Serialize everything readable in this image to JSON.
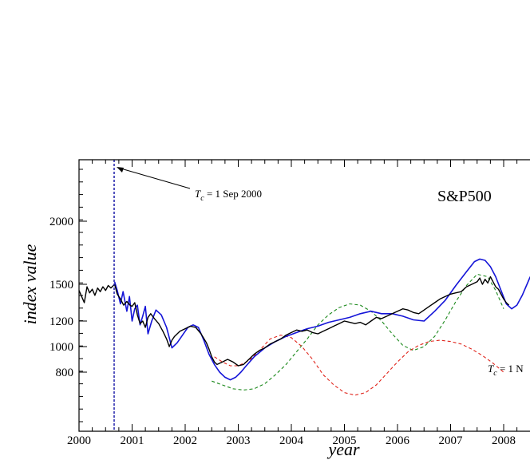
{
  "chart_data": {
    "type": "line",
    "title": "S&P500",
    "xlabel": "year",
    "ylabel": "index value",
    "xlim": [
      2000.0,
      2008.5
    ],
    "ylim": [
      500,
      2400
    ],
    "x_ticks": [
      2000,
      2001,
      2002,
      2003,
      2004,
      2005,
      2006,
      2007,
      2008
    ],
    "y_ticks": [
      800,
      1000,
      1200,
      1500,
      2000
    ],
    "grid": false,
    "annotations": [
      {
        "text_var": "T",
        "text_sub": "c",
        "text_rest": " = 1 Sep 2000",
        "at": [
          2000.67,
          2350
        ]
      },
      {
        "text_var": "T",
        "text_sub": "c",
        "text_rest": " = 1 N",
        "at": [
          2008.2,
          800
        ]
      }
    ],
    "series": [
      {
        "style": "black-solid",
        "x": [
          2000.0,
          2000.05,
          2000.1,
          2000.15,
          2000.2,
          2000.25,
          2000.3,
          2000.35,
          2000.4,
          2000.45,
          2000.5,
          2000.55,
          2000.6,
          2000.67,
          2000.72,
          2000.78,
          2000.84,
          2000.9,
          2000.96,
          2001.0,
          2001.05,
          2001.1,
          2001.15,
          2001.2,
          2001.25,
          2001.3,
          2001.35,
          2001.42,
          2001.5,
          2001.58,
          2001.65,
          2001.7,
          2001.75,
          2001.8,
          2001.9,
          2002.0,
          2002.1,
          2002.2,
          2002.3,
          2002.4,
          2002.45,
          2002.5,
          2002.55,
          2002.6,
          2002.7,
          2002.8,
          2002.9,
          2003.0,
          2003.1,
          2003.2,
          2003.3,
          2003.4,
          2003.5,
          2003.6,
          2003.7,
          2003.8,
          2003.9,
          2004.0,
          2004.1,
          2004.2,
          2004.3,
          2004.4,
          2004.5,
          2004.6,
          2004.7,
          2004.8,
          2004.9,
          2005.0,
          2005.1,
          2005.2,
          2005.3,
          2005.4,
          2005.5,
          2005.6,
          2005.7,
          2005.8,
          2005.9,
          2006.0,
          2006.1,
          2006.2,
          2006.3,
          2006.4,
          2006.5,
          2006.6,
          2006.7,
          2006.8,
          2006.9,
          2007.0,
          2007.1,
          2007.2,
          2007.3,
          2007.4,
          2007.5,
          2007.55,
          2007.6,
          2007.65,
          2007.7,
          2007.75,
          2007.8,
          2007.85,
          2007.9,
          2007.95,
          2008.0,
          2008.05,
          2008.1
        ],
        "y": [
          1450,
          1400,
          1350,
          1480,
          1430,
          1460,
          1410,
          1470,
          1440,
          1480,
          1450,
          1490,
          1470,
          1500,
          1420,
          1380,
          1330,
          1360,
          1330,
          1320,
          1350,
          1250,
          1180,
          1200,
          1150,
          1230,
          1260,
          1220,
          1180,
          1120,
          1060,
          1000,
          1050,
          1080,
          1120,
          1140,
          1160,
          1150,
          1100,
          1030,
          980,
          920,
          880,
          860,
          880,
          900,
          880,
          850,
          860,
          900,
          940,
          970,
          990,
          1020,
          1040,
          1060,
          1090,
          1110,
          1130,
          1120,
          1130,
          1110,
          1100,
          1120,
          1140,
          1160,
          1180,
          1200,
          1190,
          1180,
          1190,
          1170,
          1200,
          1230,
          1220,
          1240,
          1260,
          1280,
          1300,
          1290,
          1270,
          1260,
          1290,
          1320,
          1350,
          1380,
          1400,
          1420,
          1430,
          1440,
          1480,
          1500,
          1520,
          1550,
          1500,
          1540,
          1510,
          1560,
          1520,
          1480,
          1460,
          1420,
          1380,
          1350,
          1330
        ]
      },
      {
        "style": "blue-solid",
        "x": [
          2000.67,
          2000.72,
          2000.78,
          2000.83,
          2000.9,
          2000.95,
          2001.0,
          2001.05,
          2001.1,
          2001.15,
          2001.2,
          2001.25,
          2001.3,
          2001.37,
          2001.45,
          2001.55,
          2001.65,
          2001.75,
          2001.85,
          2001.95,
          2002.05,
          2002.15,
          2002.25,
          2002.35,
          2002.45,
          2002.55,
          2002.65,
          2002.75,
          2002.85,
          2002.95,
          2003.05,
          2003.15,
          2003.3,
          2003.5,
          2003.7,
          2003.9,
          2004.1,
          2004.3,
          2004.5,
          2004.7,
          2004.9,
          2005.1,
          2005.3,
          2005.5,
          2005.7,
          2005.9,
          2006.1,
          2006.3,
          2006.5,
          2006.7,
          2006.9,
          2007.1,
          2007.3,
          2007.45,
          2007.55,
          2007.65,
          2007.75,
          2007.85,
          2007.95,
          2008.05,
          2008.15,
          2008.25,
          2008.35,
          2008.5
        ],
        "y": [
          1520,
          1450,
          1340,
          1440,
          1280,
          1400,
          1200,
          1300,
          1330,
          1170,
          1240,
          1320,
          1100,
          1200,
          1290,
          1250,
          1150,
          990,
          1030,
          1090,
          1150,
          1170,
          1150,
          1050,
          940,
          860,
          800,
          760,
          740,
          760,
          800,
          850,
          920,
          990,
          1040,
          1080,
          1110,
          1140,
          1160,
          1190,
          1210,
          1230,
          1260,
          1280,
          1260,
          1260,
          1240,
          1210,
          1200,
          1280,
          1370,
          1490,
          1600,
          1680,
          1700,
          1690,
          1640,
          1560,
          1450,
          1340,
          1300,
          1330,
          1410,
          1560
        ]
      },
      {
        "style": "red-dashed",
        "x": [
          2002.55,
          2002.7,
          2002.85,
          2003.0,
          2003.2,
          2003.4,
          2003.6,
          2003.8,
          2004.0,
          2004.2,
          2004.4,
          2004.6,
          2004.8,
          2005.0,
          2005.2,
          2005.4,
          2005.6,
          2005.8,
          2006.0,
          2006.2,
          2006.4,
          2006.6,
          2006.8,
          2007.0,
          2007.2,
          2007.4,
          2007.6,
          2007.8,
          2008.0
        ],
        "y": [
          920,
          880,
          850,
          850,
          890,
          970,
          1060,
          1090,
          1070,
          1000,
          900,
          780,
          700,
          640,
          620,
          640,
          700,
          790,
          880,
          960,
          1010,
          1040,
          1050,
          1040,
          1020,
          980,
          930,
          870,
          800
        ]
      },
      {
        "style": "green-dashed",
        "x": [
          2002.5,
          2002.7,
          2002.9,
          2003.1,
          2003.3,
          2003.5,
          2003.7,
          2003.9,
          2004.1,
          2004.3,
          2004.5,
          2004.7,
          2004.9,
          2005.1,
          2005.3,
          2005.5,
          2005.7,
          2005.9,
          2006.1,
          2006.3,
          2006.5,
          2006.7,
          2006.9,
          2007.1,
          2007.3,
          2007.5,
          2007.7,
          2007.85,
          2008.0
        ],
        "y": [
          730,
          700,
          670,
          660,
          670,
          710,
          780,
          860,
          960,
          1060,
          1170,
          1250,
          1310,
          1340,
          1330,
          1280,
          1200,
          1100,
          1010,
          970,
          1000,
          1080,
          1210,
          1360,
          1490,
          1580,
          1560,
          1450,
          1300
        ]
      }
    ]
  }
}
